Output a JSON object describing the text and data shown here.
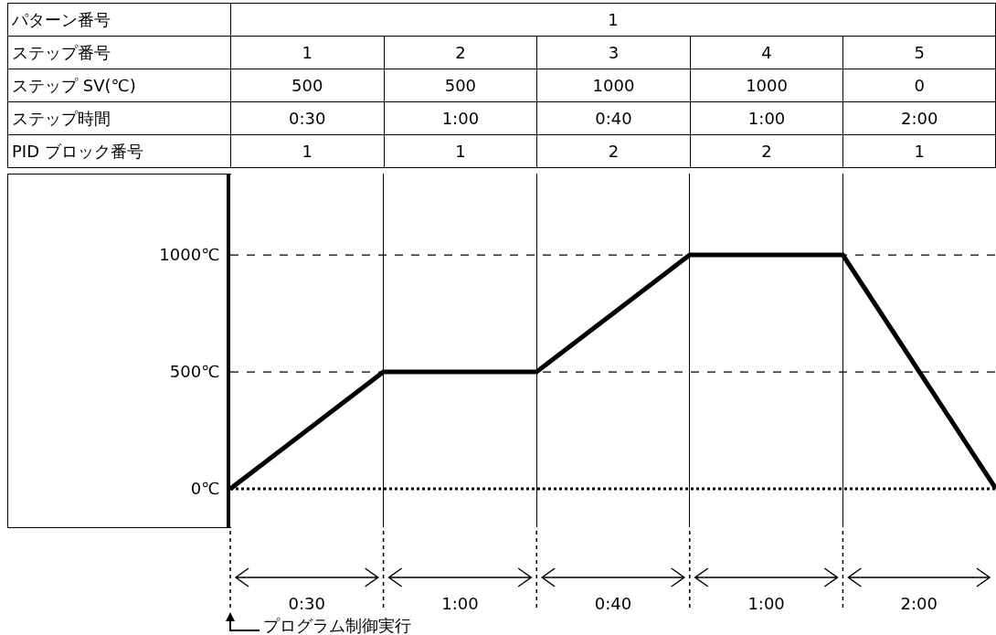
{
  "chart_data": {
    "type": "line",
    "categories": [
      null,
      null,
      null,
      null,
      null,
      null
    ],
    "series": [
      {
        "color": "#000000",
        "values": [
          0,
          500,
          500,
          1000,
          1000,
          0
        ]
      }
    ],
    "ylim": [
      -164,
      1348
    ],
    "yticks": [
      {
        "value": 0,
        "label": "0℃"
      },
      {
        "value": 500,
        "label": "500℃"
      },
      {
        "value": 1000,
        "label": "1000℃"
      }
    ],
    "grid": "x",
    "tick_labels": "y",
    "marker": "none",
    "line_style": "solid",
    "ref_lines": [
      {
        "axis": "y",
        "value": 0,
        "line_style": "dotted",
        "color": "#000000"
      },
      {
        "axis": "y",
        "value": 500,
        "line_style": "dashed",
        "color": "#000000"
      },
      {
        "axis": "y",
        "value": 1000,
        "line_style": "dashed",
        "color": "#000000"
      }
    ],
    "annotations": [
      "パターン番号",
      "1",
      "ステップ番号",
      "1",
      "2",
      "3",
      "4",
      "5",
      "ステップ SV(℃)",
      "500",
      "500",
      "1000",
      "1000",
      "0",
      "ステップ時間",
      "0:30",
      "1:00",
      "0:40",
      "1:00",
      "2:00",
      "PID ブロック番号",
      "1",
      "1",
      "2",
      "2",
      "1",
      "0:30",
      "1:00",
      "0:40",
      "1:00",
      "2:00",
      "プログラム制御実行"
    ]
  }
}
